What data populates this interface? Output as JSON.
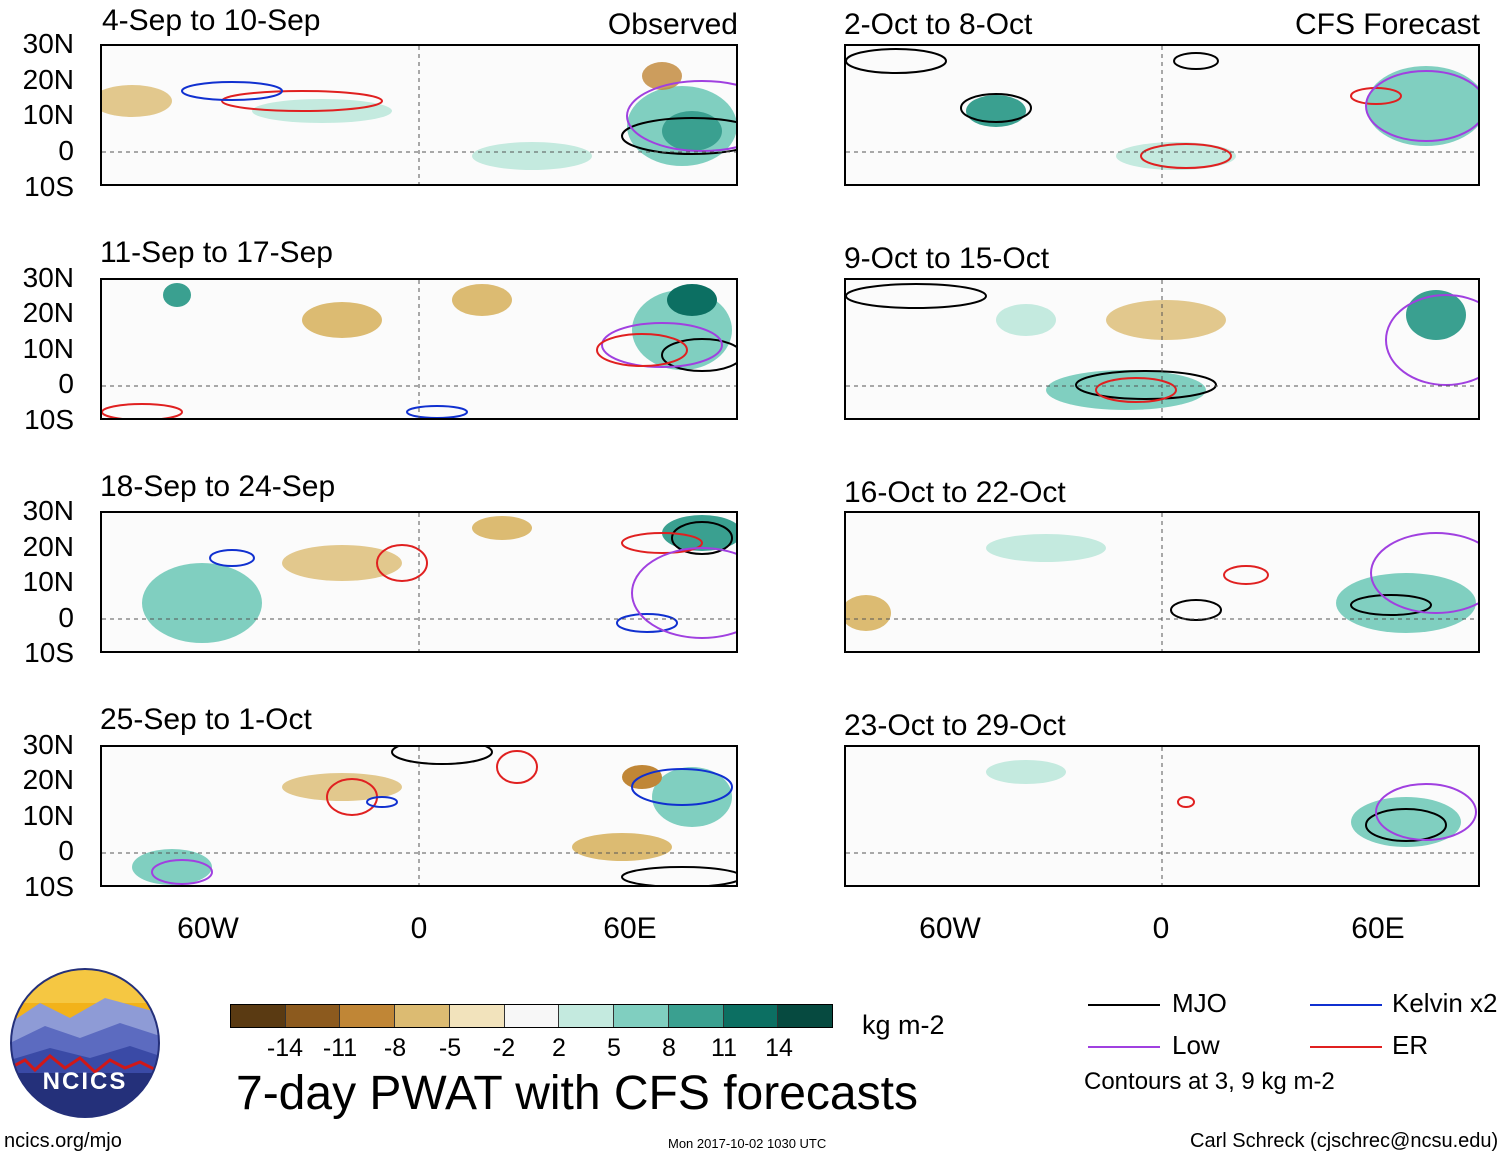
{
  "panels": [
    {
      "title": "4-Sep to 10-Sep",
      "tag": "Observed"
    },
    {
      "title": "2-Oct to 8-Oct",
      "tag": "CFS Forecast"
    },
    {
      "title": "11-Sep to 17-Sep",
      "tag": ""
    },
    {
      "title": "9-Oct to 15-Oct",
      "tag": ""
    },
    {
      "title": "18-Sep to 24-Sep",
      "tag": ""
    },
    {
      "title": "16-Oct to 22-Oct",
      "tag": ""
    },
    {
      "title": "25-Sep to 1-Oct",
      "tag": ""
    },
    {
      "title": "23-Oct to 29-Oct",
      "tag": ""
    }
  ],
  "lat_labels": [
    "30N",
    "20N",
    "10N",
    "0",
    "10S"
  ],
  "lon_labels": [
    "60W",
    "0",
    "60E"
  ],
  "colorbar": {
    "ticks": [
      "-14",
      "-11",
      "-8",
      "-5",
      "-2",
      "2",
      "5",
      "8",
      "11",
      "14"
    ],
    "colors": [
      "#5a3a12",
      "#8c5a1e",
      "#c08636",
      "#dcbb72",
      "#f2e3bc",
      "#f7f7f7",
      "#c4eadf",
      "#80cfc0",
      "#3aa090",
      "#0c6f62",
      "#064a40"
    ],
    "units": "kg m-2"
  },
  "legend": {
    "items": [
      {
        "label": "MJO",
        "color": "#000000"
      },
      {
        "label": "Kelvin x2",
        "color": "#1030d0"
      },
      {
        "label": "Low",
        "color": "#a040e0"
      },
      {
        "label": "ER",
        "color": "#e02020"
      }
    ],
    "note": "Contours at 3, 9 kg m-2"
  },
  "title": "7-day PWAT with CFS forecasts",
  "logo_text": "NCICS",
  "footer": {
    "left": "ncics.org/mjo",
    "center": "Mon 2017-10-02 1030 UTC",
    "right": "Carl Schreck (cjschrec@ncsu.edu)"
  }
}
